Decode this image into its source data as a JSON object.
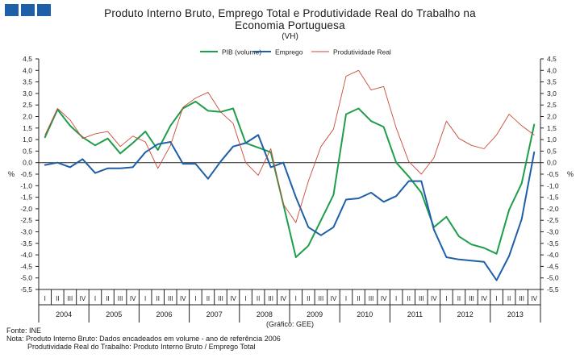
{
  "header": {
    "logo_icon": "gee-logo-blocks",
    "brand_color": "#1f5fa8",
    "title_line1": "Produto Interno Bruto, Emprego Total e Produtividade Real do Trabalho na",
    "title_line2": "Economia Portuguesa",
    "subtitle": "(VH)"
  },
  "chart_data": {
    "type": "line",
    "title": "Produto Interno Bruto, Emprego Total e Produtividade Real do Trabalho na Economia Portuguesa",
    "subtitle": "(VH)",
    "ylabel_left": "%",
    "ylabel_right": "%",
    "ylim": [
      -5.5,
      4.5
    ],
    "ytick_step": 0.5,
    "yticks": [
      "4,5",
      "4,0",
      "3,5",
      "3,0",
      "2,5",
      "2,0",
      "1,5",
      "1,0",
      "0,5",
      "0,0",
      "-0,5",
      "-1,0",
      "-1,5",
      "-2,0",
      "-2,5",
      "-3,0",
      "-3,5",
      "-4,0",
      "-4,5",
      "-5,0",
      "-5,5"
    ],
    "grid": false,
    "legend_position": "top-center",
    "quarters": [
      "I",
      "II",
      "III",
      "IV"
    ],
    "years": [
      "2004",
      "2005",
      "2006",
      "2007",
      "2008",
      "2009",
      "2010",
      "2011",
      "2012",
      "2013"
    ],
    "series": [
      {
        "name": "PIB (volume)",
        "color": "#1e9e4a",
        "width": 2,
        "values": [
          1.1,
          2.3,
          1.6,
          1.1,
          0.75,
          1.05,
          0.4,
          0.85,
          1.35,
          0.55,
          1.6,
          2.35,
          2.65,
          2.25,
          2.2,
          2.35,
          0.85,
          0.65,
          0.45,
          -1.8,
          -4.1,
          -3.6,
          -2.5,
          -1.4,
          2.1,
          2.35,
          1.8,
          1.55,
          0.0,
          -0.6,
          -1.3,
          -2.8,
          -2.35,
          -3.2,
          -3.55,
          -3.7,
          -3.95,
          -2.05,
          -0.9,
          1.65
        ]
      },
      {
        "name": "Emprego",
        "color": "#1f5fa8",
        "width": 2,
        "values": [
          -0.1,
          0.0,
          -0.2,
          0.15,
          -0.45,
          -0.25,
          -0.25,
          -0.2,
          0.45,
          0.8,
          0.9,
          -0.05,
          -0.05,
          -0.7,
          0.05,
          0.7,
          0.85,
          1.2,
          -0.2,
          0.0,
          -1.5,
          -2.8,
          -3.15,
          -2.8,
          -1.6,
          -1.55,
          -1.3,
          -1.7,
          -1.45,
          -0.8,
          -0.8,
          -2.9,
          -4.1,
          -4.2,
          -4.25,
          -4.3,
          -5.1,
          -4.05,
          -2.45,
          0.45
        ]
      },
      {
        "name": "Produtividade Real",
        "color": "#c94a3a",
        "width": 0.9,
        "values": [
          1.2,
          2.35,
          1.85,
          1.05,
          1.25,
          1.35,
          0.7,
          1.15,
          0.9,
          -0.25,
          0.75,
          2.4,
          2.8,
          3.05,
          2.2,
          1.7,
          0.0,
          -0.55,
          0.6,
          -1.8,
          -2.6,
          -0.8,
          0.7,
          1.45,
          3.75,
          4.0,
          3.15,
          3.3,
          1.5,
          0.05,
          -0.5,
          0.2,
          1.8,
          1.05,
          0.75,
          0.6,
          1.2,
          2.1,
          1.6,
          1.2
        ]
      }
    ]
  },
  "footer": {
    "source_credit": "(Gráfico: GEE)",
    "fonte": "Fonte: INE",
    "nota_line1": "Nota: Produto Interno Bruto: Dados  encadeados  em volume  - ano de referência 2006",
    "nota_line2": "Produtividade  Real do Trabalho:  Produto Interno Bruto / Emprego Total"
  }
}
